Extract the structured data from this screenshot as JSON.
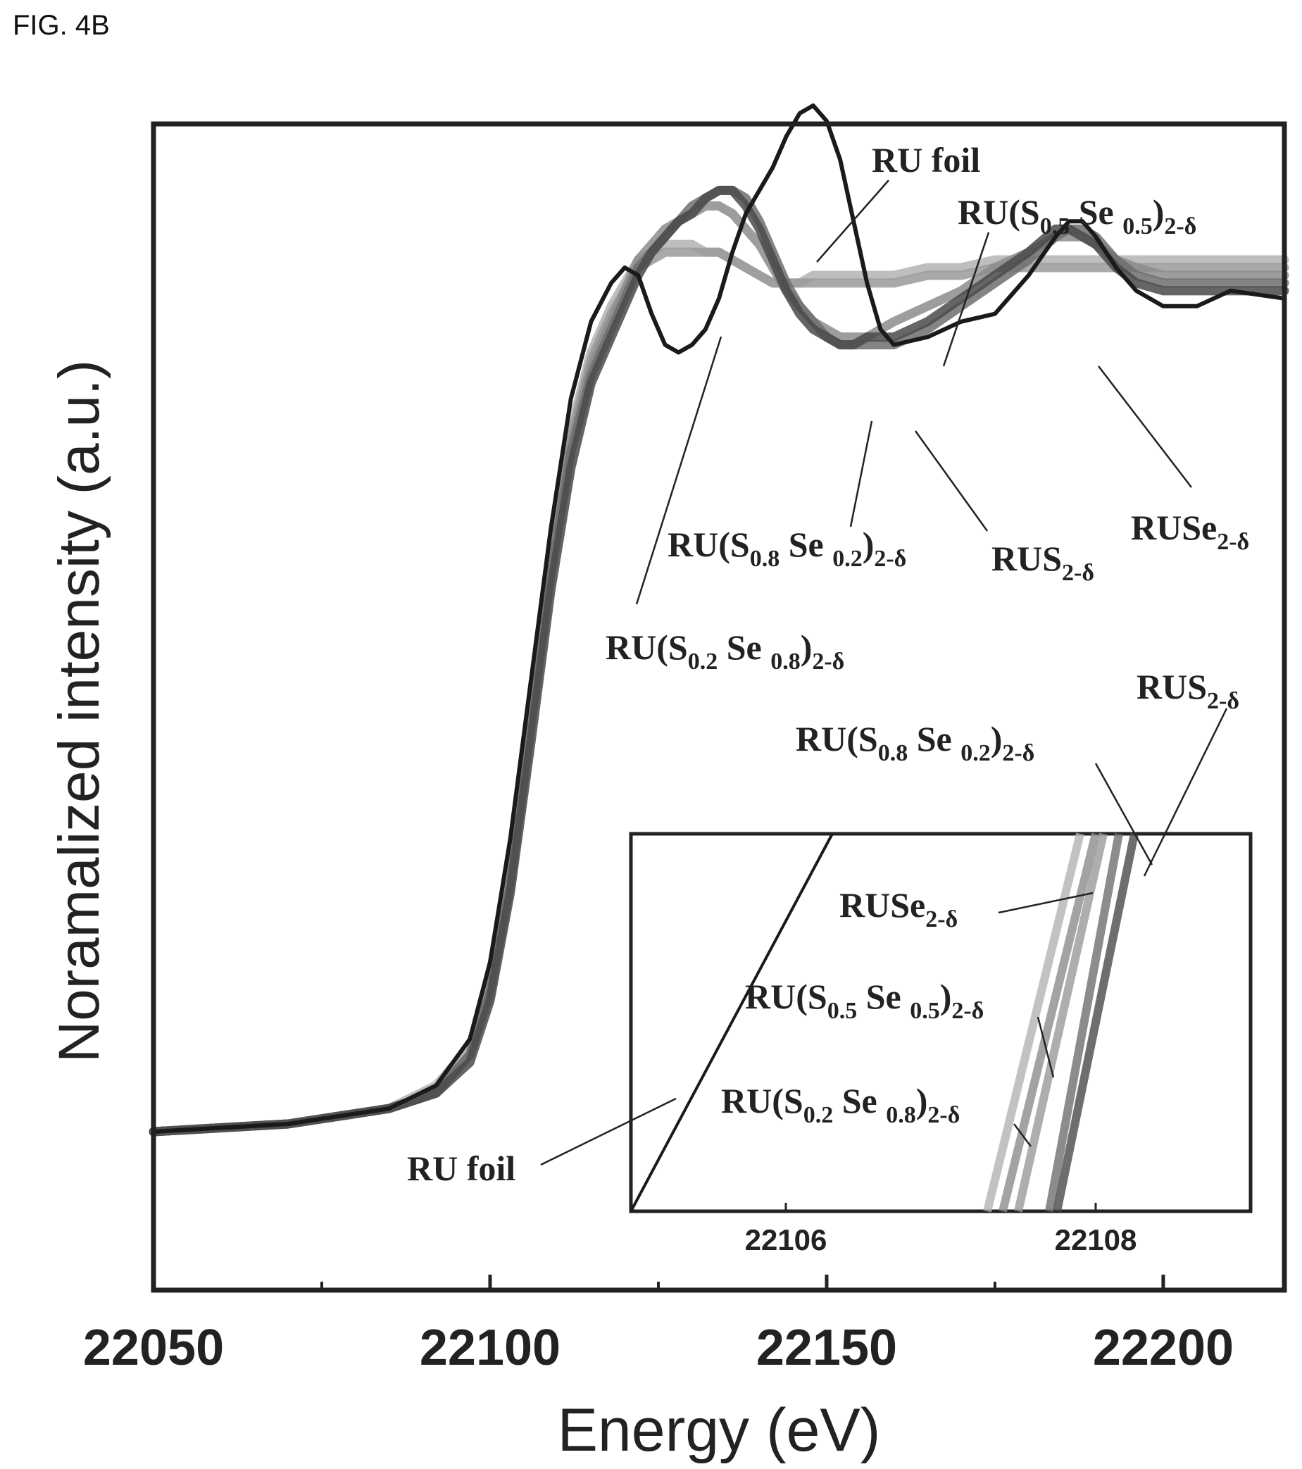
{
  "figure_label": "FIG. 4B",
  "chart_data": {
    "type": "line",
    "title": "",
    "xlabel": "Energy (eV)",
    "ylabel": "Noramalized intensity (a.u.)",
    "xlim": [
      22050,
      22218
    ],
    "ylim": [
      0,
      1.6
    ],
    "x_ticks": [
      22050,
      22100,
      22150,
      22200
    ],
    "x_tick_labels": [
      "22050",
      "22100",
      "22150",
      "22200"
    ],
    "y_ticks_shown": false,
    "grid": false,
    "legend": "none",
    "series": [
      {
        "name": "RU foil",
        "color": "#1a1a1a",
        "x": [
          22050,
          22070,
          22085,
          22092,
          22097,
          22100,
          22103,
          22106,
          22109,
          22112,
          22115,
          22118,
          22120,
          22122,
          22124,
          22126,
          22128,
          22130,
          22132,
          22134,
          22136,
          22138,
          22140,
          22142,
          22144,
          22146,
          22148,
          22150,
          22152,
          22154,
          22156,
          22158,
          22160,
          22165,
          22170,
          22175,
          22180,
          22184,
          22186,
          22188,
          22190,
          22193,
          22196,
          22200,
          22205,
          22210,
          22218
        ],
        "y": [
          0.0,
          0.01,
          0.03,
          0.06,
          0.12,
          0.22,
          0.38,
          0.58,
          0.78,
          0.95,
          1.05,
          1.1,
          1.12,
          1.11,
          1.06,
          1.02,
          1.01,
          1.02,
          1.04,
          1.08,
          1.14,
          1.19,
          1.22,
          1.25,
          1.29,
          1.32,
          1.33,
          1.31,
          1.26,
          1.18,
          1.1,
          1.04,
          1.02,
          1.03,
          1.05,
          1.06,
          1.11,
          1.16,
          1.18,
          1.18,
          1.16,
          1.12,
          1.09,
          1.07,
          1.07,
          1.09,
          1.08
        ]
      },
      {
        "name": "RU(S0.8 Se0.2)2-δ",
        "color": "#6f6f6f",
        "x": [
          22050,
          22070,
          22085,
          22092,
          22097,
          22100,
          22103,
          22106,
          22109,
          22112,
          22115,
          22118,
          22120,
          22122,
          22124,
          22126,
          22128,
          22130,
          22132,
          22134,
          22136,
          22138,
          22140,
          22142,
          22144,
          22146,
          22148,
          22150,
          22152,
          22154,
          22156,
          22158,
          22160,
          22165,
          22170,
          22175,
          22180,
          22184,
          22186,
          22188,
          22190,
          22193,
          22196,
          22200,
          22205,
          22210,
          22218
        ],
        "y": [
          0.0,
          0.01,
          0.03,
          0.05,
          0.1,
          0.18,
          0.32,
          0.52,
          0.72,
          0.88,
          0.98,
          1.04,
          1.08,
          1.12,
          1.14,
          1.16,
          1.18,
          1.2,
          1.21,
          1.22,
          1.22,
          1.21,
          1.18,
          1.14,
          1.1,
          1.07,
          1.05,
          1.03,
          1.02,
          1.02,
          1.02,
          1.02,
          1.02,
          1.04,
          1.07,
          1.1,
          1.13,
          1.16,
          1.17,
          1.17,
          1.16,
          1.13,
          1.11,
          1.1,
          1.1,
          1.1,
          1.1
        ]
      },
      {
        "name": "RUS2-δ",
        "color": "#4a4a4a",
        "x": [
          22050,
          22070,
          22085,
          22092,
          22097,
          22100,
          22103,
          22106,
          22109,
          22112,
          22115,
          22118,
          22120,
          22122,
          22124,
          22126,
          22128,
          22130,
          22132,
          22134,
          22136,
          22138,
          22140,
          22142,
          22144,
          22146,
          22148,
          22150,
          22152,
          22154,
          22156,
          22158,
          22160,
          22165,
          22170,
          22175,
          22180,
          22184,
          22186,
          22188,
          22190,
          22193,
          22196,
          22200,
          22205,
          22210,
          22218
        ],
        "y": [
          0.0,
          0.01,
          0.03,
          0.05,
          0.09,
          0.17,
          0.31,
          0.5,
          0.7,
          0.86,
          0.97,
          1.03,
          1.07,
          1.11,
          1.14,
          1.16,
          1.18,
          1.19,
          1.21,
          1.22,
          1.22,
          1.2,
          1.17,
          1.13,
          1.09,
          1.06,
          1.04,
          1.03,
          1.02,
          1.02,
          1.03,
          1.03,
          1.03,
          1.05,
          1.08,
          1.11,
          1.14,
          1.17,
          1.17,
          1.16,
          1.15,
          1.12,
          1.1,
          1.09,
          1.09,
          1.09,
          1.09
        ]
      },
      {
        "name": "RU(S0.2 Se0.8)2-δ",
        "color": "#8c8c8c",
        "x": [
          22050,
          22070,
          22085,
          22092,
          22097,
          22100,
          22103,
          22106,
          22109,
          22112,
          22115,
          22118,
          22120,
          22122,
          22124,
          22126,
          22128,
          22130,
          22132,
          22134,
          22136,
          22138,
          22140,
          22142,
          22144,
          22146,
          22148,
          22150,
          22152,
          22154,
          22156,
          22158,
          22160,
          22165,
          22170,
          22175,
          22180,
          22184,
          22186,
          22188,
          22190,
          22193,
          22196,
          22200,
          22205,
          22210,
          22218
        ],
        "y": [
          0.0,
          0.01,
          0.03,
          0.05,
          0.1,
          0.19,
          0.33,
          0.53,
          0.73,
          0.89,
          0.99,
          1.05,
          1.09,
          1.13,
          1.15,
          1.17,
          1.18,
          1.19,
          1.2,
          1.2,
          1.19,
          1.17,
          1.15,
          1.12,
          1.09,
          1.07,
          1.05,
          1.04,
          1.03,
          1.03,
          1.03,
          1.04,
          1.05,
          1.07,
          1.09,
          1.12,
          1.14,
          1.16,
          1.16,
          1.16,
          1.15,
          1.13,
          1.12,
          1.11,
          1.11,
          1.11,
          1.11
        ]
      },
      {
        "name": "RU(S0.5 Se0.5)2-δ",
        "color": "#9a9a9a",
        "x": [
          22050,
          22070,
          22085,
          22092,
          22097,
          22100,
          22103,
          22106,
          22109,
          22112,
          22115,
          22118,
          22120,
          22122,
          22124,
          22126,
          22128,
          22130,
          22132,
          22134,
          22136,
          22138,
          22140,
          22142,
          22144,
          22146,
          22148,
          22150,
          22152,
          22154,
          22156,
          22158,
          22160,
          22165,
          22170,
          22175,
          22180,
          22184,
          22186,
          22188,
          22190,
          22193,
          22196,
          22200,
          22205,
          22210,
          22218
        ],
        "y": [
          0.0,
          0.01,
          0.03,
          0.05,
          0.1,
          0.19,
          0.34,
          0.54,
          0.74,
          0.9,
          1.0,
          1.06,
          1.09,
          1.12,
          1.13,
          1.14,
          1.14,
          1.14,
          1.14,
          1.14,
          1.13,
          1.12,
          1.11,
          1.1,
          1.1,
          1.1,
          1.1,
          1.1,
          1.1,
          1.1,
          1.1,
          1.1,
          1.1,
          1.11,
          1.11,
          1.12,
          1.12,
          1.12,
          1.12,
          1.12,
          1.12,
          1.12,
          1.12,
          1.12,
          1.12,
          1.12,
          1.12
        ]
      },
      {
        "name": "RUSe2-δ",
        "color": "#b3b3b3",
        "x": [
          22050,
          22070,
          22085,
          22092,
          22097,
          22100,
          22103,
          22106,
          22109,
          22112,
          22115,
          22118,
          22120,
          22122,
          22124,
          22126,
          22128,
          22130,
          22132,
          22134,
          22136,
          22138,
          22140,
          22142,
          22144,
          22146,
          22148,
          22150,
          22152,
          22154,
          22156,
          22158,
          22160,
          22165,
          22170,
          22175,
          22180,
          22184,
          22186,
          22188,
          22190,
          22193,
          22196,
          22200,
          22205,
          22210,
          22218
        ],
        "y": [
          0.0,
          0.01,
          0.03,
          0.06,
          0.11,
          0.2,
          0.35,
          0.55,
          0.75,
          0.91,
          1.01,
          1.07,
          1.1,
          1.13,
          1.14,
          1.15,
          1.15,
          1.15,
          1.14,
          1.14,
          1.13,
          1.12,
          1.11,
          1.1,
          1.1,
          1.1,
          1.11,
          1.11,
          1.11,
          1.11,
          1.11,
          1.11,
          1.11,
          1.12,
          1.12,
          1.13,
          1.13,
          1.13,
          1.13,
          1.13,
          1.13,
          1.13,
          1.13,
          1.13,
          1.13,
          1.13,
          1.13
        ]
      }
    ],
    "annotations": [
      {
        "id": "foil_top",
        "main": "RU foil",
        "sub": "",
        "tail": ""
      },
      {
        "id": "s05_top",
        "main": "RU(S",
        "sub": "0.5",
        "mid": " Se ",
        "sub2": "0.5",
        "tail": ")",
        "sub3": "2-δ"
      },
      {
        "id": "s08_top",
        "main": "RU(S",
        "sub": "0.8",
        "mid": " Se ",
        "sub2": "0.2",
        "tail": ")",
        "sub3": "2-δ"
      },
      {
        "id": "rus2_top",
        "main": "RUS",
        "sub": "2-δ"
      },
      {
        "id": "ruse2_top",
        "main": "RUSe",
        "sub": "2-δ"
      },
      {
        "id": "s02_top",
        "main": "RU(S",
        "sub": "0.2",
        "mid": " Se ",
        "sub2": "0.8",
        "tail": ")",
        "sub3": "2-δ"
      },
      {
        "id": "rus2_inset",
        "main": "RUS",
        "sub": "2-δ"
      },
      {
        "id": "s08_inset",
        "main": "RU(S",
        "sub": "0.8",
        "mid": " Se ",
        "sub2": "0.2",
        "tail": ")",
        "sub3": "2-δ"
      },
      {
        "id": "ruse2_inset",
        "main": "RUSe",
        "sub": "2-δ"
      },
      {
        "id": "s05_inset",
        "main": "RU(S",
        "sub": "0.5",
        "mid": " Se ",
        "sub2": "0.5",
        "tail": ")",
        "sub3": "2-δ"
      },
      {
        "id": "s02_inset",
        "main": "RU(S",
        "sub": "0.2",
        "mid": " Se ",
        "sub2": "0.8",
        "tail": ")",
        "sub3": "2-δ"
      },
      {
        "id": "foil_inset",
        "main": "RU foil"
      }
    ],
    "inset": {
      "type": "line",
      "xlim": [
        22105,
        22109
      ],
      "x_ticks": [
        22106,
        22108
      ],
      "x_tick_labels": [
        "22106",
        "22108"
      ],
      "series": [
        {
          "name": "RU foil",
          "color": "#1a1a1a",
          "x": [
            22105.0,
            22106.3
          ],
          "y": [
            0.0,
            1.0
          ]
        },
        {
          "name": "RUSe2-δ",
          "color": "#b3b3b3",
          "x": [
            22107.3,
            22107.9
          ],
          "y": [
            0.0,
            1.0
          ]
        },
        {
          "name": "RU(S0.2 Se0.8)2-δ",
          "color": "#8c8c8c",
          "x": [
            22107.4,
            22108.0
          ],
          "y": [
            0.0,
            1.0
          ]
        },
        {
          "name": "RU(S0.5 Se0.5)2-δ",
          "color": "#9a9a9a",
          "x": [
            22107.5,
            22108.05
          ],
          "y": [
            0.0,
            1.0
          ]
        },
        {
          "name": "RU(S0.8 Se0.2)2-δ",
          "color": "#6f6f6f",
          "x": [
            22107.7,
            22108.15
          ],
          "y": [
            0.0,
            1.0
          ]
        },
        {
          "name": "RUS2-δ",
          "color": "#4a4a4a",
          "x": [
            22107.75,
            22108.25
          ],
          "y": [
            0.0,
            1.0
          ]
        }
      ]
    }
  }
}
